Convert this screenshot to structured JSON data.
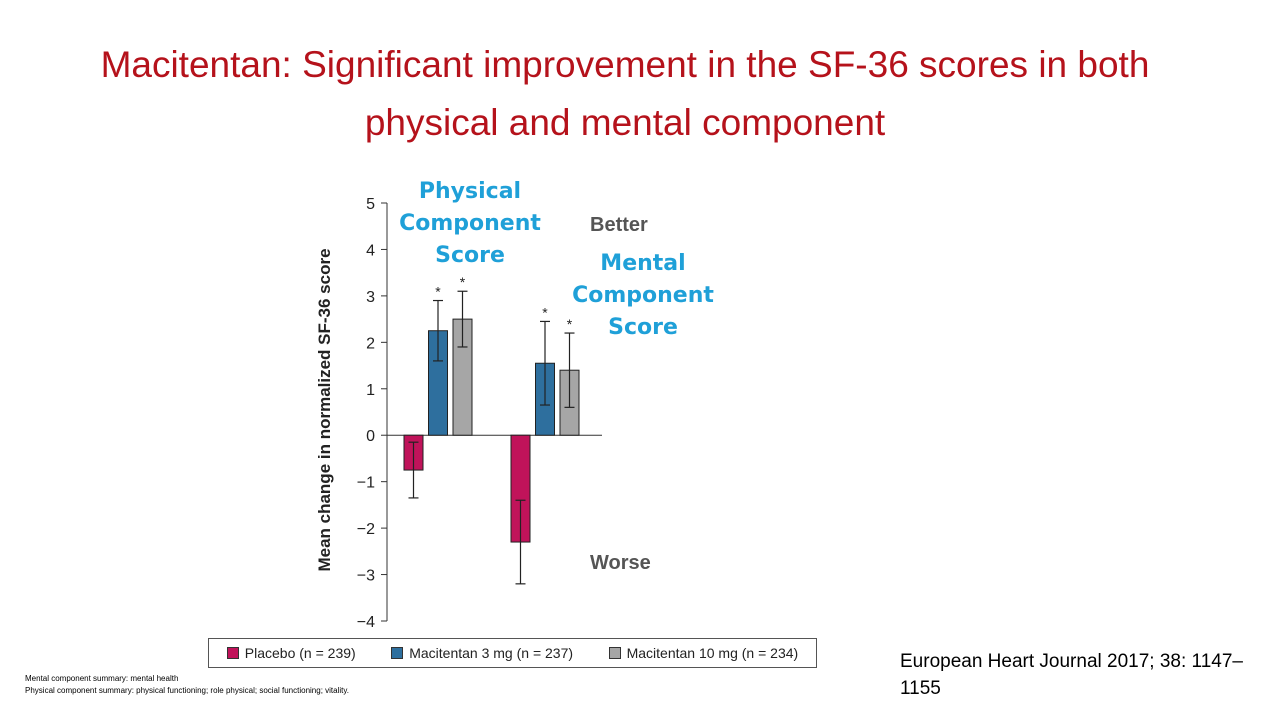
{
  "title": "Macitentan: Significant improvement in the SF-36 scores in both physical and mental component",
  "chart_data": {
    "type": "bar",
    "y_label": "Mean change in normalized SF-36 score",
    "categories": [
      "Physical Component Score",
      "Mental Component Score"
    ],
    "series": [
      {
        "name": "Placebo (n = 239)",
        "color": "#c0135a",
        "values": [
          -0.75,
          -2.3
        ],
        "errors": [
          0.6,
          0.9
        ]
      },
      {
        "name": "Macitentan 3 mg (n = 237)",
        "color": "#2e6f9e",
        "values": [
          2.25,
          1.55
        ],
        "errors": [
          0.65,
          0.9
        ],
        "significance": [
          "*",
          "*"
        ]
      },
      {
        "name": "Macitentan 10 mg (n = 234)",
        "color": "#a6a6a6",
        "values": [
          2.5,
          1.4
        ],
        "errors": [
          0.6,
          0.8
        ],
        "significance": [
          "*",
          "*"
        ]
      }
    ],
    "ylim": [
      -4,
      5
    ],
    "yticks": [
      {
        "value": -4,
        "label": "−4"
      },
      {
        "value": -3,
        "label": "−3"
      },
      {
        "value": -2,
        "label": "−2"
      },
      {
        "value": -1,
        "label": "−1"
      },
      0,
      1,
      2,
      3,
      4,
      5
    ],
    "annotations": {
      "better": "Better",
      "worse": "Worse"
    }
  },
  "footnotes": [
    "Mental component summary: mental health",
    "Physical component summary: physical functioning; role physical;  social functioning; vitality."
  ],
  "citation": "European Heart Journal 2017; 38: 1147–1155"
}
